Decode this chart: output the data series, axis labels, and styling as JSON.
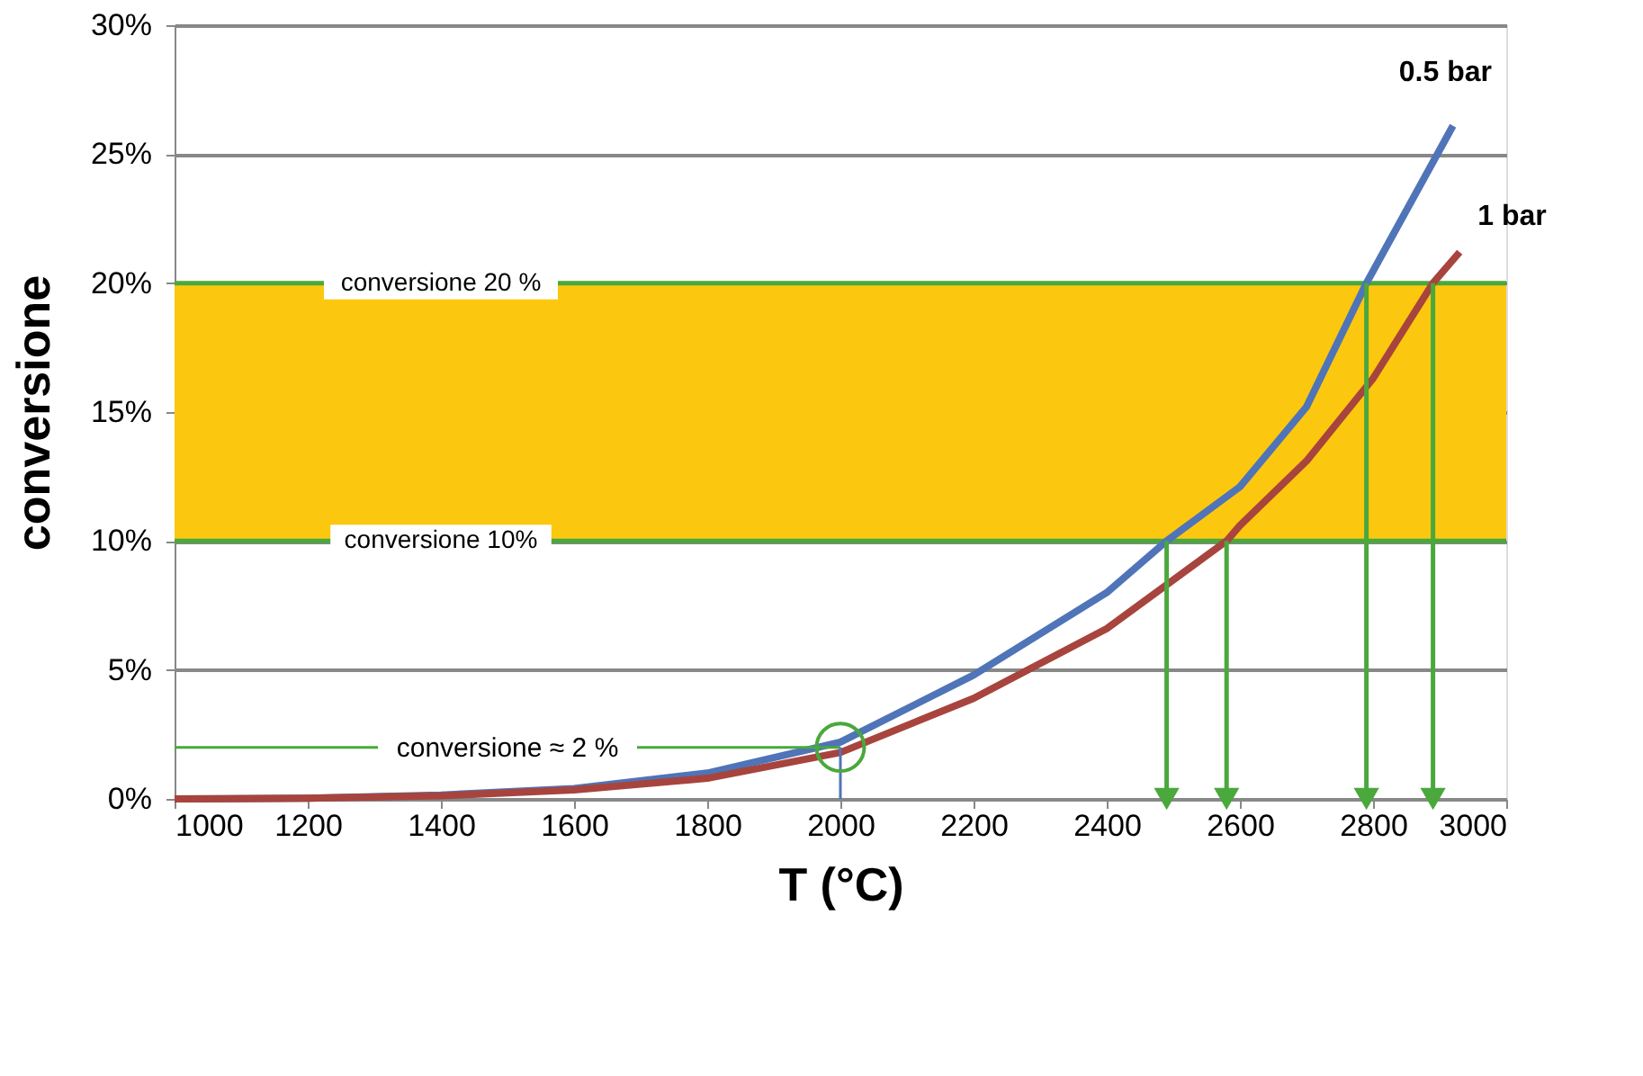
{
  "chart_data": {
    "type": "line",
    "xlabel": "T (°C)",
    "ylabel": "conversione",
    "xlim": [
      1000,
      3000
    ],
    "xticks": [
      1000,
      1200,
      1400,
      1600,
      1800,
      2000,
      2200,
      2400,
      2600,
      2800,
      3000
    ],
    "ylim": [
      0,
      30
    ],
    "yticks": [
      {
        "value": 0,
        "label": "0%"
      },
      {
        "value": 5,
        "label": "5%"
      },
      {
        "value": 10,
        "label": "10%"
      },
      {
        "value": 15,
        "label": "15%"
      },
      {
        "value": 20,
        "label": "20%"
      },
      {
        "value": 25,
        "label": "25%"
      },
      {
        "value": 30,
        "label": "30%"
      }
    ],
    "grid": "y",
    "line_style": "solid",
    "series": [
      {
        "name": "0.5 bar",
        "color": "#4f74b8",
        "x": [
          1000,
          1200,
          1400,
          1600,
          1800,
          2000,
          2200,
          2400,
          2490,
          2600,
          2700,
          2790,
          2920
        ],
        "values": [
          0,
          0.03,
          0.15,
          0.4,
          1.0,
          2.2,
          4.8,
          8.0,
          10,
          12.1,
          15.2,
          20,
          26.1
        ]
      },
      {
        "name": "1 bar",
        "color": "#a8443e",
        "x": [
          1000,
          1200,
          1400,
          1600,
          1800,
          2000,
          2200,
          2400,
          2580,
          2600,
          2700,
          2800,
          2890,
          2930
        ],
        "values": [
          0,
          0.03,
          0.12,
          0.35,
          0.8,
          1.8,
          3.9,
          6.6,
          10,
          10.6,
          13.1,
          16.3,
          20,
          21.2
        ]
      },
      {
        "color": "#4aa83c",
        "x": [
          1000,
          2000
        ],
        "values": [
          2,
          2
        ]
      },
      {
        "color": "#4f74b8",
        "x": [
          2000,
          2000
        ],
        "values": [
          0,
          2
        ]
      },
      {
        "type": "scatter",
        "marker": "circle",
        "color": "#4aa83c",
        "x": [
          2000
        ],
        "values": [
          2
        ]
      },
      {
        "color": "#4aa83c",
        "x": [
          2490,
          2490
        ],
        "values": [
          10,
          0
        ]
      },
      {
        "color": "#4aa83c",
        "x": [
          2580,
          2580
        ],
        "values": [
          10,
          0
        ]
      },
      {
        "color": "#4aa83c",
        "x": [
          2790,
          2790
        ],
        "values": [
          20,
          0
        ]
      },
      {
        "color": "#4aa83c",
        "x": [
          2890,
          2890
        ],
        "values": [
          20,
          0
        ]
      }
    ],
    "bands": [
      {
        "axis": "y",
        "from": 10,
        "to": 20,
        "color": "#fcc70f"
      }
    ],
    "ref_lines": [
      {
        "axis": "y",
        "value": 20,
        "label": "conversione 20 %",
        "color": "#4aa83c"
      },
      {
        "axis": "y",
        "value": 10,
        "label": "conversione 10%",
        "color": "#4aa83c"
      }
    ],
    "annotations": [
      "conversione ≈ 2 %"
    ]
  }
}
